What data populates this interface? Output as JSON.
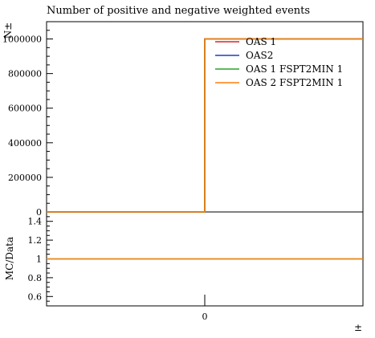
{
  "chart_data": [
    {
      "type": "line",
      "title": "Number of positive and negative weighted events",
      "ylabel": "N±",
      "xlabel": "±",
      "ylim": [
        0,
        1100000
      ],
      "xlim": [
        -1,
        1
      ],
      "yticks": [
        "0",
        "200000",
        "400000",
        "600000",
        "800000",
        "1000000"
      ],
      "ytick_values": [
        0,
        200000,
        400000,
        600000,
        800000,
        1000000
      ],
      "xticks": [
        "0"
      ],
      "xtick_values": [
        0
      ],
      "legend_position": "top-right",
      "grid": false,
      "series": [
        {
          "name": "OAS 1",
          "color": "#d62728",
          "x": [
            -1,
            0,
            0,
            1
          ],
          "y": [
            0,
            0,
            1000000,
            1000000
          ]
        },
        {
          "name": "OAS2",
          "color": "#1f3fbf",
          "x": [
            -1,
            0,
            0,
            1
          ],
          "y": [
            0,
            0,
            1000000,
            1000000
          ]
        },
        {
          "name": "OAS 1 FSPT2MIN 1",
          "color": "#2ca02c",
          "x": [
            -1,
            0,
            0,
            1
          ],
          "y": [
            0,
            0,
            1000000,
            1000000
          ]
        },
        {
          "name": "OAS 2 FSPT2MIN 1",
          "color": "#ff7f0e",
          "x": [
            -1,
            0,
            0,
            1
          ],
          "y": [
            0,
            0,
            1000000,
            1000000
          ]
        }
      ]
    },
    {
      "type": "line",
      "ylabel": "MC/Data",
      "ylim": [
        0.5,
        1.5
      ],
      "xlim": [
        -1,
        1
      ],
      "yticks": [
        "0.6",
        "0.8",
        "1",
        "1.2",
        "1.4"
      ],
      "ytick_values": [
        0.6,
        0.8,
        1.0,
        1.2,
        1.4
      ],
      "grid": false,
      "series": [
        {
          "color": "#2ca02c",
          "x": [
            -1,
            1
          ],
          "y": [
            1,
            1
          ]
        },
        {
          "color": "#ff7f0e",
          "x": [
            -1,
            1
          ],
          "y": [
            1,
            1
          ]
        }
      ]
    }
  ]
}
